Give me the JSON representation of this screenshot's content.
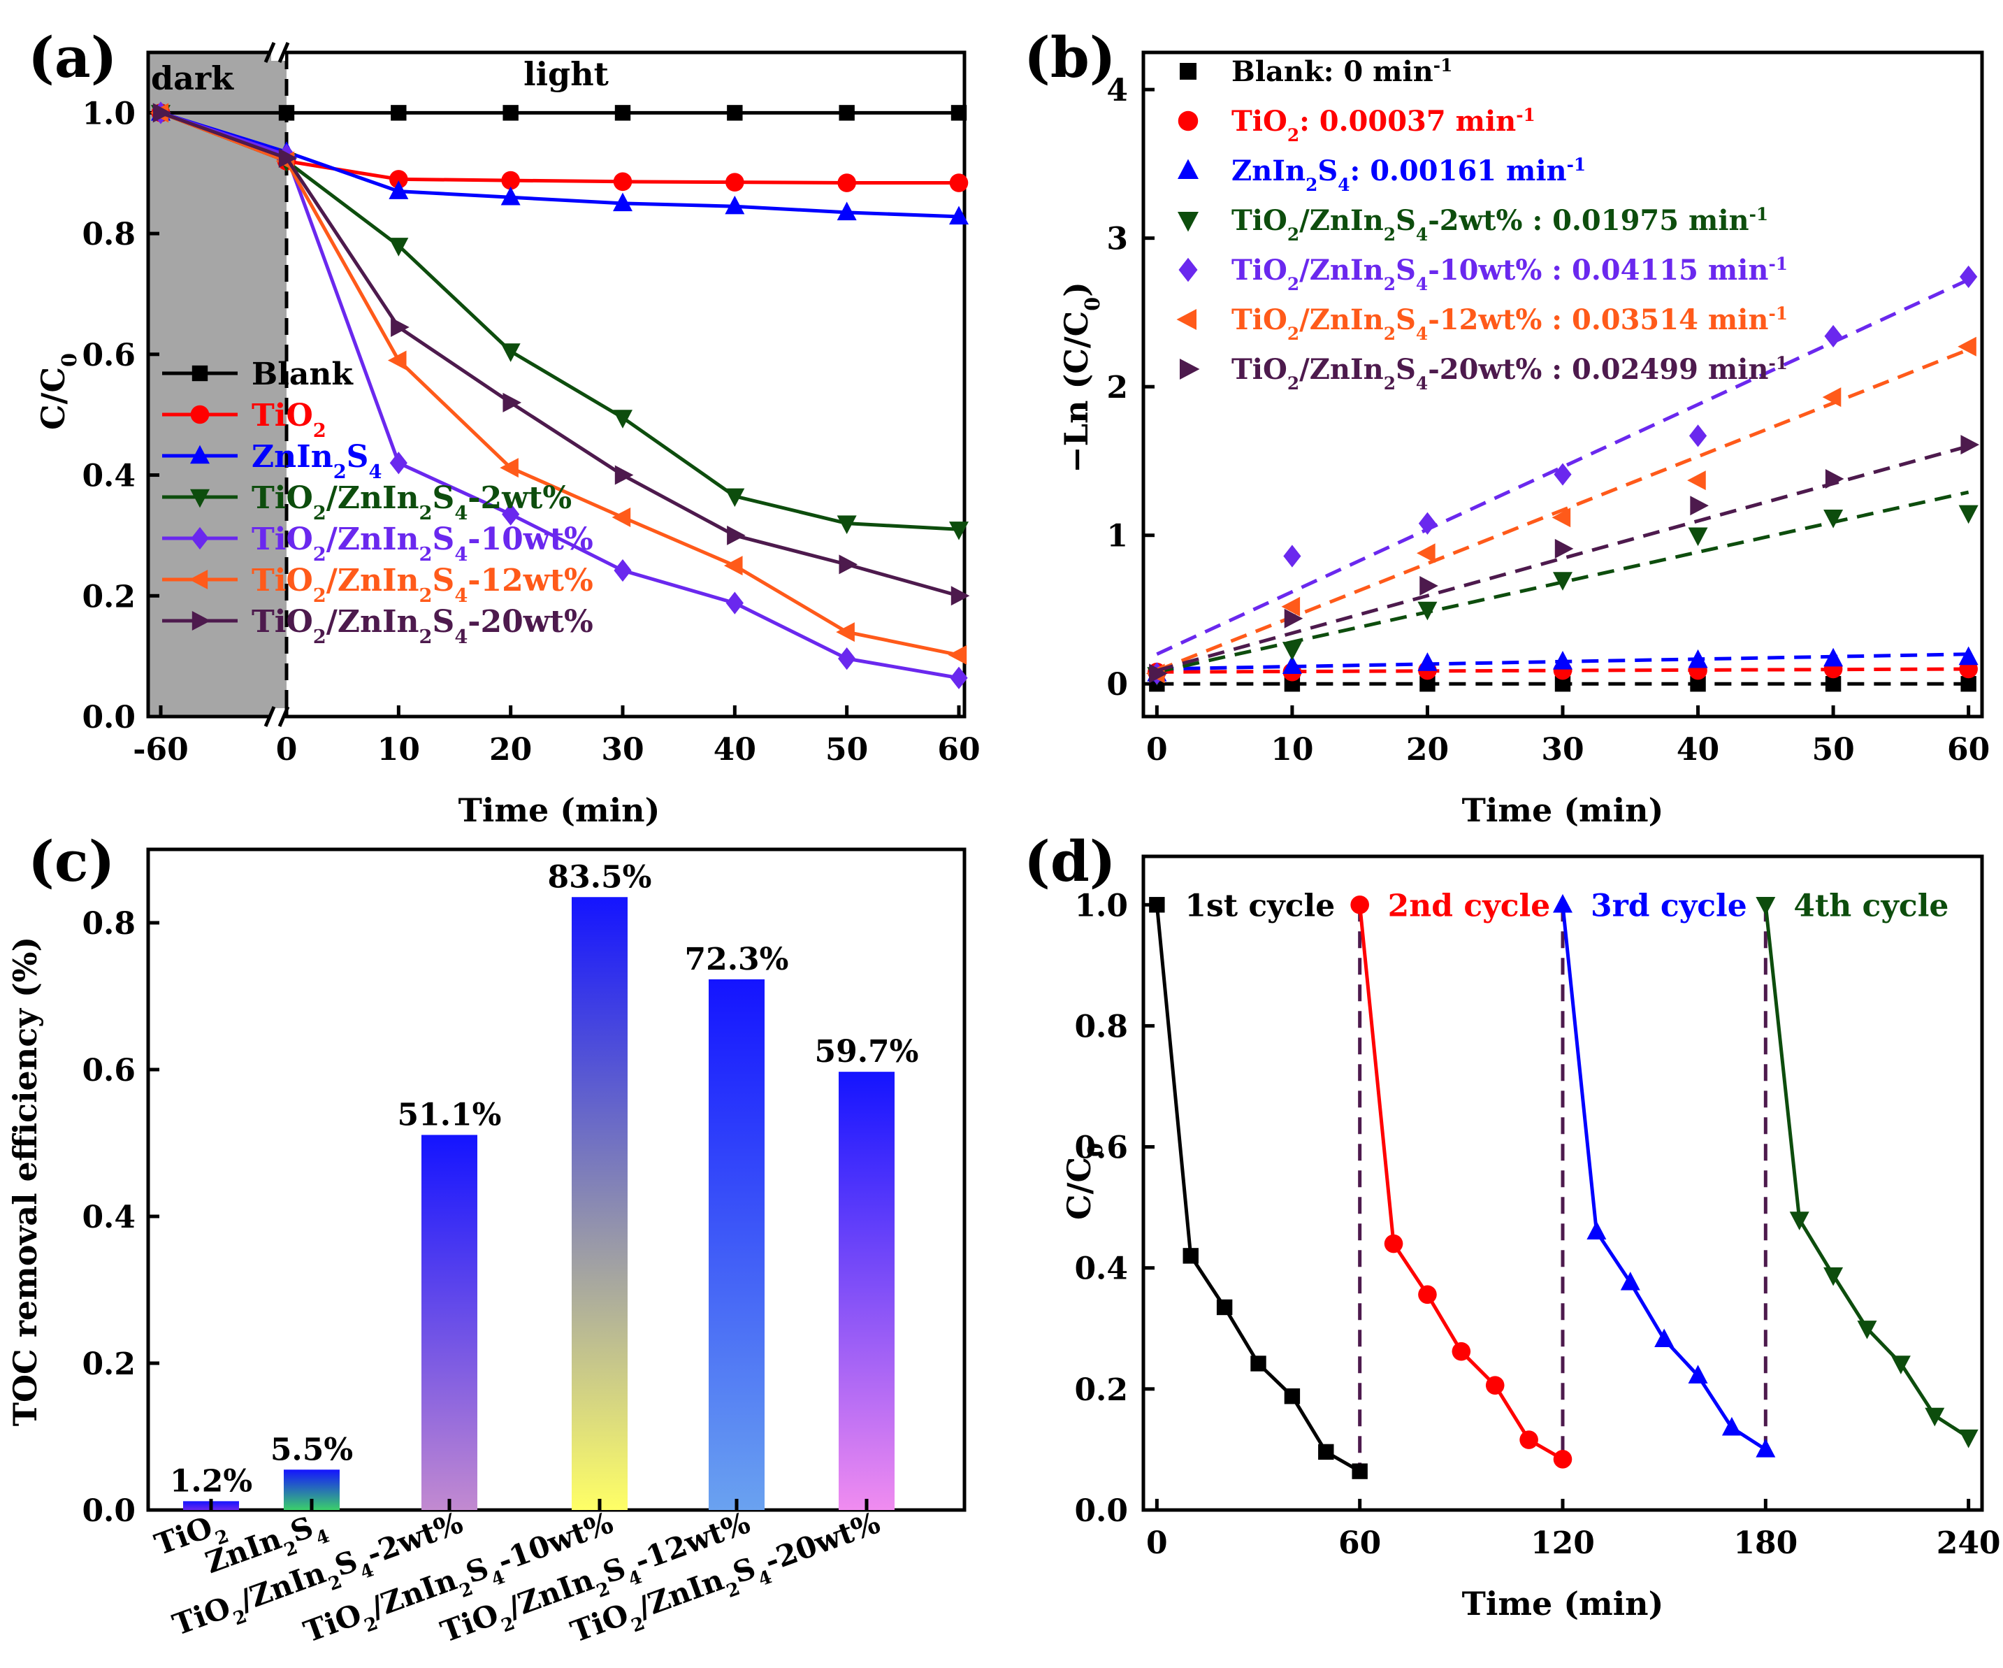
{
  "colors": {
    "blank": "#000000",
    "tio2": "#ff0000",
    "zis": "#0000ff",
    "w2": "#0d4d0d",
    "w10": "#6a28ee",
    "w12": "#ff5a1a",
    "w20": "#4d1a4d",
    "dark_region": "#a6a6a6"
  },
  "chart_data": [
    {
      "id": "a",
      "panel_label": "(a)",
      "type": "line",
      "xlabel": "Time (min)",
      "ylabel_main": "C/C",
      "ylabel_sub": "0",
      "x_ticks": [
        "-60",
        "0",
        "10",
        "20",
        "30",
        "40",
        "50",
        "60"
      ],
      "y_ticks": [
        "0.0",
        "0.2",
        "0.4",
        "0.6",
        "0.8",
        "1.0"
      ],
      "ylim": [
        0,
        1.1
      ],
      "region_labels": {
        "dark": "dark",
        "light": "light"
      },
      "x": [
        -60,
        0,
        10,
        20,
        30,
        40,
        50,
        60
      ],
      "series": [
        {
          "key": "blank",
          "legend": [
            "Blank"
          ],
          "marker": "square",
          "values": [
            1.0,
            1.0,
            1.0,
            1.0,
            1.0,
            1.0,
            1.0,
            1.0
          ]
        },
        {
          "key": "tio2",
          "legend": [
            "TiO",
            "2"
          ],
          "marker": "circle",
          "values": [
            1.0,
            0.92,
            0.89,
            0.888,
            0.886,
            0.885,
            0.884,
            0.884
          ]
        },
        {
          "key": "zis",
          "legend": [
            "ZnIn",
            "2",
            "S",
            "4"
          ],
          "marker": "triangle-up",
          "values": [
            1.0,
            0.935,
            0.87,
            0.86,
            0.85,
            0.845,
            0.835,
            0.828
          ]
        },
        {
          "key": "w2",
          "legend": [
            "TiO",
            "2",
            "/ZnIn",
            "2",
            "S",
            "4",
            "-2wt%"
          ],
          "marker": "triangle-down",
          "values": [
            1.0,
            0.92,
            0.78,
            0.605,
            0.495,
            0.365,
            0.32,
            0.31
          ]
        },
        {
          "key": "w10",
          "legend": [
            "TiO",
            "2",
            "/ZnIn",
            "2",
            "S",
            "4",
            "-10wt%"
          ],
          "marker": "diamond",
          "values": [
            1.0,
            0.93,
            0.42,
            0.335,
            0.242,
            0.188,
            0.096,
            0.064
          ]
        },
        {
          "key": "w12",
          "legend": [
            "TiO",
            "2",
            "/ZnIn",
            "2",
            "S",
            "4",
            "-12wt%"
          ],
          "marker": "triangle-left",
          "values": [
            1.0,
            0.92,
            0.59,
            0.412,
            0.33,
            0.25,
            0.14,
            0.102
          ]
        },
        {
          "key": "w20",
          "legend": [
            "TiO",
            "2",
            "/ZnIn",
            "2",
            "S",
            "4",
            "-20wt%"
          ],
          "marker": "triangle-right",
          "values": [
            1.0,
            0.925,
            0.645,
            0.52,
            0.4,
            0.3,
            0.252,
            0.2
          ]
        }
      ]
    },
    {
      "id": "b",
      "panel_label": "(b)",
      "type": "scatter",
      "xlabel": "Time (min)",
      "ylabel": "−Ln (C/C",
      "ylabel_sub": "0",
      "ylabel_end": ")",
      "x_ticks": [
        "0",
        "10",
        "20",
        "30",
        "40",
        "50",
        "60"
      ],
      "y_ticks": [
        "0",
        "1",
        "2",
        "3",
        "4"
      ],
      "xlim": [
        -1,
        61
      ],
      "ylim": [
        -0.22,
        4.25
      ],
      "x": [
        0,
        10,
        20,
        30,
        40,
        50,
        60
      ],
      "series": [
        {
          "key": "blank",
          "legend": [
            "Blank: 0 min",
            "-1"
          ],
          "marker": "square",
          "values": [
            0,
            0,
            0,
            0,
            0,
            0,
            0
          ],
          "fit": [
            0,
            0
          ]
        },
        {
          "key": "tio2",
          "legend": [
            "TiO",
            "2",
            ": 0.00037 min",
            "-1"
          ],
          "marker": "circle",
          "values": [
            0.08,
            0.08,
            0.09,
            0.09,
            0.09,
            0.1,
            0.1
          ],
          "fit": [
            0.08,
            0.1
          ]
        },
        {
          "key": "zis",
          "legend": [
            "ZnIn",
            "2",
            "S",
            "4",
            ": 0.00161 min",
            "-1"
          ],
          "marker": "triangle-up",
          "values": [
            0.07,
            0.12,
            0.14,
            0.15,
            0.16,
            0.17,
            0.18
          ],
          "fit": [
            0.1,
            0.2
          ]
        },
        {
          "key": "w2",
          "legend": [
            "TiO",
            "2",
            "/ZnIn",
            "2",
            "S",
            "4",
            "-2wt% : 0.01975 min",
            "-1"
          ],
          "marker": "triangle-down",
          "values": [
            0.06,
            0.23,
            0.5,
            0.7,
            1.0,
            1.12,
            1.15
          ],
          "fit": [
            0.08,
            1.29
          ]
        },
        {
          "key": "w10",
          "legend": [
            "TiO",
            "2",
            "/ZnIn",
            "2",
            "S",
            "4",
            "-10wt% : 0.04115 min",
            "-1"
          ],
          "marker": "diamond",
          "values": [
            0.07,
            0.86,
            1.08,
            1.41,
            1.67,
            2.34,
            2.74
          ],
          "fit": [
            0.2,
            2.72
          ]
        },
        {
          "key": "w12",
          "legend": [
            "TiO",
            "2",
            "/ZnIn",
            "2",
            "S",
            "4",
            "-12wt% : 0.03514 min",
            "-1"
          ],
          "marker": "triangle-left",
          "values": [
            0.07,
            0.52,
            0.88,
            1.12,
            1.37,
            1.93,
            2.27
          ],
          "fit": [
            0.09,
            2.25
          ]
        },
        {
          "key": "w20",
          "legend": [
            "TiO",
            "2",
            "/ZnIn",
            "2",
            "S",
            "4",
            "-20wt% : 0.02499 min",
            "-1"
          ],
          "marker": "triangle-right",
          "values": [
            0.07,
            0.44,
            0.66,
            0.91,
            1.2,
            1.38,
            1.61
          ],
          "fit": [
            0.09,
            1.6
          ]
        }
      ]
    },
    {
      "id": "c",
      "panel_label": "(c)",
      "type": "bar",
      "ylabel": "TOC removal efficiency (%)",
      "y_ticks": [
        "0.0",
        "0.2",
        "0.4",
        "0.6",
        "0.8"
      ],
      "ylim": [
        0,
        0.9
      ],
      "categories": [
        [
          "TiO",
          "2"
        ],
        [
          "ZnIn",
          "2",
          "S",
          "4"
        ],
        [
          "TiO",
          "2",
          "/ZnIn",
          "2",
          "S",
          "4",
          "-2wt%"
        ],
        [
          "TiO",
          "2",
          "/ZnIn",
          "2",
          "S",
          "4",
          "-10wt%"
        ],
        [
          "TiO",
          "2",
          "/ZnIn",
          "2",
          "S",
          "4",
          "-12wt%"
        ],
        [
          "TiO",
          "2",
          "/ZnIn",
          "2",
          "S",
          "4",
          "-20wt%"
        ]
      ],
      "values": [
        0.012,
        0.055,
        0.511,
        0.835,
        0.723,
        0.597
      ],
      "value_labels": [
        "1.2%",
        "5.5%",
        "51.1%",
        "83.5%",
        "72.3%",
        "59.7%"
      ],
      "gradients": [
        [
          "#1414ff",
          "#6a28ee"
        ],
        [
          "#1414ff",
          "#3bd06a"
        ],
        [
          "#1414ff",
          "#c28ad0"
        ],
        [
          "#1414ff",
          "#ffff66"
        ],
        [
          "#1414ff",
          "#6aa2f0"
        ],
        [
          "#1414ff",
          "#f08cf0"
        ]
      ]
    },
    {
      "id": "d",
      "panel_label": "(d)",
      "type": "line",
      "xlabel": "Time (min)",
      "ylabel_main": "C/C",
      "ylabel_sub": "0",
      "x_ticks": [
        "0",
        "60",
        "120",
        "180",
        "240"
      ],
      "y_ticks": [
        "0.0",
        "0.2",
        "0.4",
        "0.6",
        "0.8",
        "1.0"
      ],
      "xlim": [
        -4,
        244
      ],
      "ylim": [
        0,
        1.08
      ],
      "cycles": [
        {
          "key": "blank",
          "label": "1st cycle",
          "marker": "square",
          "x": [
            0,
            10,
            20,
            30,
            40,
            50,
            60
          ],
          "values": [
            1.0,
            0.42,
            0.335,
            0.242,
            0.188,
            0.096,
            0.064
          ]
        },
        {
          "key": "tio2",
          "label": "2nd cycle",
          "marker": "circle",
          "x": [
            60,
            70,
            80,
            90,
            100,
            110,
            120
          ],
          "values": [
            1.0,
            0.44,
            0.356,
            0.262,
            0.206,
            0.116,
            0.084
          ]
        },
        {
          "key": "zis",
          "label": "3rd cycle",
          "marker": "triangle-up",
          "x": [
            120,
            130,
            140,
            150,
            160,
            170,
            180
          ],
          "values": [
            1.0,
            0.46,
            0.376,
            0.282,
            0.222,
            0.136,
            0.1
          ]
        },
        {
          "key": "w2",
          "label": "4th cycle",
          "marker": "triangle-down",
          "x": [
            180,
            190,
            200,
            210,
            220,
            230,
            240
          ],
          "values": [
            1.0,
            0.48,
            0.388,
            0.3,
            0.242,
            0.156,
            0.12
          ]
        }
      ],
      "dividers": [
        60,
        120,
        180
      ]
    }
  ]
}
